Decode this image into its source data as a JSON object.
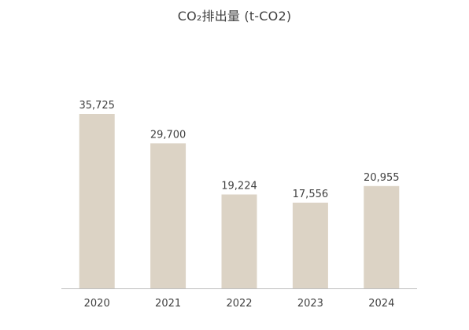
{
  "chart_data": {
    "type": "bar",
    "title": "CO₂排出量 (t-CO2)",
    "categories": [
      "2020",
      "2021",
      "2022",
      "2023",
      "2024"
    ],
    "values": [
      35725,
      29700,
      19224,
      17556,
      20955
    ],
    "data_labels": [
      "35,725",
      "29,700",
      "19,224",
      "17,556",
      "20,955"
    ],
    "ylim": [
      0,
      40000
    ],
    "grid": false,
    "legend": "none",
    "bar_color": "#dcd3c5",
    "axis_color": "#bfbfbf",
    "text_color": "#404040"
  }
}
